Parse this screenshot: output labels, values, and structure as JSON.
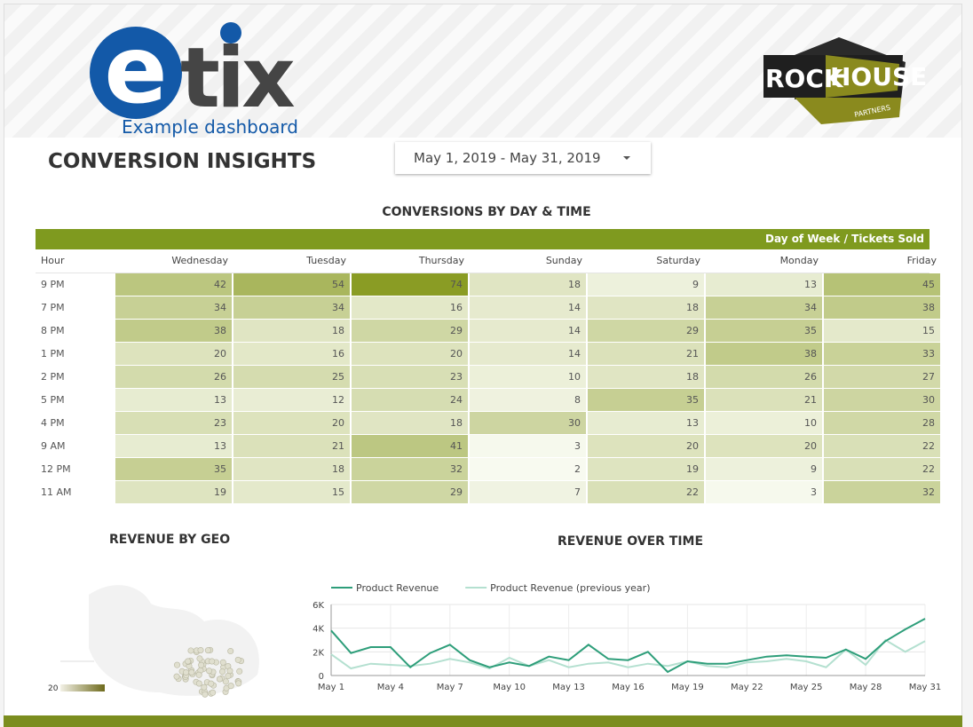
{
  "header": {
    "logo_mark": "e",
    "logo_text": "tix",
    "logo_caption": "Example dashboard",
    "partner_word1": "ROCK",
    "partner_word2": "HOUSE",
    "partner_caption": "PARTNERS",
    "title": "CONVERSION INSIGHTS",
    "date_range": "May 1, 2019 - May 31, 2019"
  },
  "table": {
    "title": "CONVERSIONS BY DAY & TIME",
    "banner": "Day of Week / Tickets Sold",
    "columns": [
      "Hour",
      "Wednesday",
      "Tuesday",
      "Thursday",
      "Sunday",
      "Saturday",
      "Monday",
      "Friday"
    ],
    "rows": [
      [
        "9 PM",
        42,
        54,
        74,
        18,
        9,
        13,
        45
      ],
      [
        "7 PM",
        34,
        34,
        16,
        14,
        18,
        34,
        38
      ],
      [
        "8 PM",
        38,
        18,
        29,
        14,
        29,
        35,
        15
      ],
      [
        "1 PM",
        20,
        16,
        20,
        14,
        21,
        38,
        33
      ],
      [
        "2 PM",
        26,
        25,
        23,
        10,
        18,
        26,
        27
      ],
      [
        "5 PM",
        13,
        12,
        24,
        8,
        35,
        21,
        30
      ],
      [
        "4 PM",
        23,
        20,
        18,
        30,
        13,
        10,
        28
      ],
      [
        "9 AM",
        13,
        21,
        41,
        3,
        20,
        20,
        22
      ],
      [
        "12 PM",
        35,
        18,
        32,
        2,
        19,
        9,
        22
      ],
      [
        "11 AM",
        19,
        15,
        29,
        7,
        22,
        3,
        32
      ]
    ]
  },
  "geo": {
    "title": "REVENUE BY GEO",
    "legend_min": "20"
  },
  "chart_data": {
    "type": "line",
    "title": "REVENUE OVER TIME",
    "categories": [
      "May 1",
      null,
      null,
      "May 4",
      null,
      null,
      "May 7",
      null,
      null,
      "May 10",
      null,
      null,
      "May 13",
      null,
      null,
      "May 16",
      null,
      null,
      "May 19",
      null,
      null,
      "May 22",
      null,
      null,
      "May 25",
      null,
      null,
      "May 28",
      null,
      null,
      "May 31"
    ],
    "series": [
      {
        "name": "Product Revenue",
        "color": "#2e9e7a",
        "values": [
          3800,
          1900,
          2400,
          2400,
          700,
          1900,
          2600,
          1300,
          700,
          1100,
          800,
          1600,
          1300,
          2600,
          1400,
          1300,
          2000,
          300,
          1200,
          1000,
          1000,
          1300,
          1600,
          1700,
          1600,
          1500,
          2200,
          1400,
          2900,
          3900,
          4800
        ]
      },
      {
        "name": "Product Revenue (previous year)",
        "color": "#b4e0d0",
        "values": [
          1800,
          600,
          1000,
          900,
          800,
          1000,
          1400,
          1100,
          600,
          1500,
          800,
          1300,
          700,
          1000,
          1100,
          700,
          1000,
          800,
          1200,
          800,
          700,
          1100,
          1200,
          1400,
          1200,
          700,
          2200,
          900,
          3000,
          2000,
          2900
        ]
      }
    ],
    "ylim": [
      0,
      6000
    ],
    "yticks": [
      0,
      {
        "value": 2000,
        "label": "2K"
      },
      {
        "value": 4000,
        "label": "4K"
      },
      {
        "value": 6000,
        "label": "6K"
      }
    ],
    "grid": true
  }
}
